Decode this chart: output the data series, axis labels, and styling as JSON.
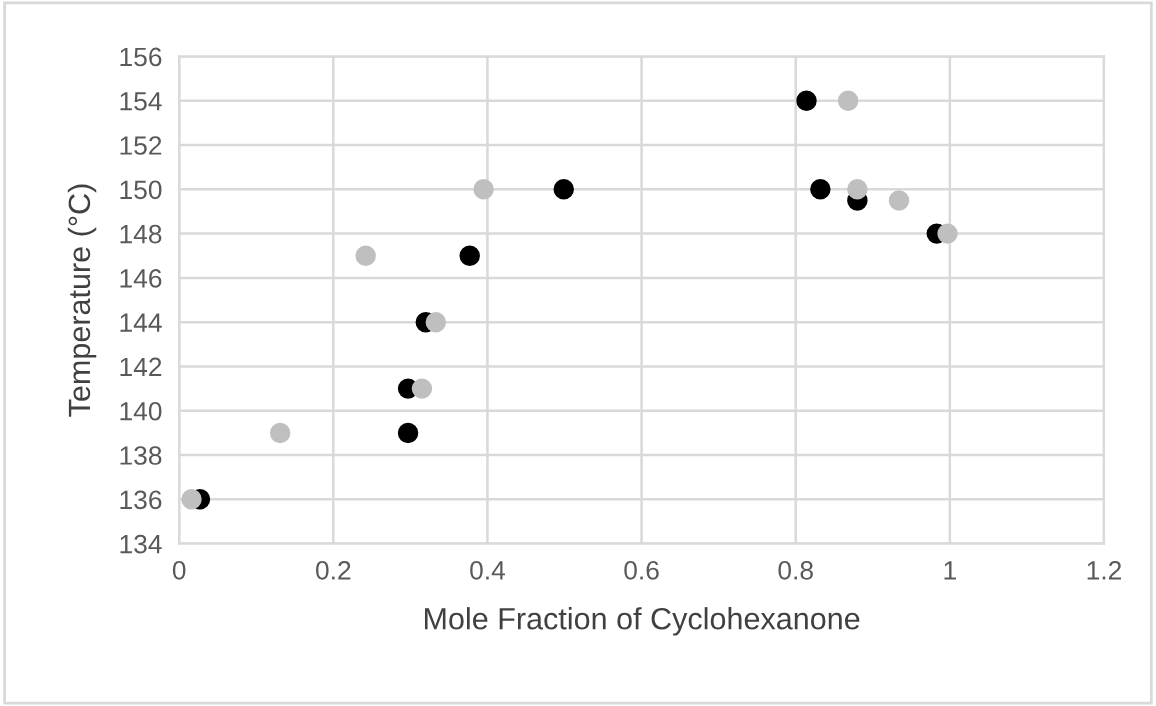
{
  "chart_data": {
    "type": "scatter",
    "xlabel": "Mole Fraction of Cyclohexanone",
    "ylabel": "Temperature (°C)",
    "series": [
      {
        "color": "#000000",
        "x": [
          0.027,
          0.297,
          0.297,
          0.32,
          0.377,
          0.499,
          0.814,
          0.832,
          0.88,
          0.983
        ],
        "values": [
          136,
          139,
          141,
          144,
          147,
          150,
          154,
          150,
          149.5,
          148
        ]
      },
      {
        "color": "#bfbfbf",
        "x": [
          0.016,
          0.131,
          0.315,
          0.333,
          0.242,
          0.395,
          0.868,
          0.88,
          0.934,
          0.997
        ],
        "values": [
          136,
          139,
          141,
          144,
          147,
          150,
          154,
          150,
          149.5,
          148
        ]
      }
    ],
    "xlim": [
      0,
      1.2
    ],
    "xticks": [
      0,
      0.2,
      0.4,
      0.6,
      0.8,
      1,
      1.2
    ],
    "ylim": [
      134,
      156
    ],
    "yticks": [
      134,
      136,
      138,
      140,
      142,
      144,
      146,
      148,
      150,
      152,
      154,
      156
    ],
    "grid": true,
    "marker": "circle",
    "legend": false
  }
}
